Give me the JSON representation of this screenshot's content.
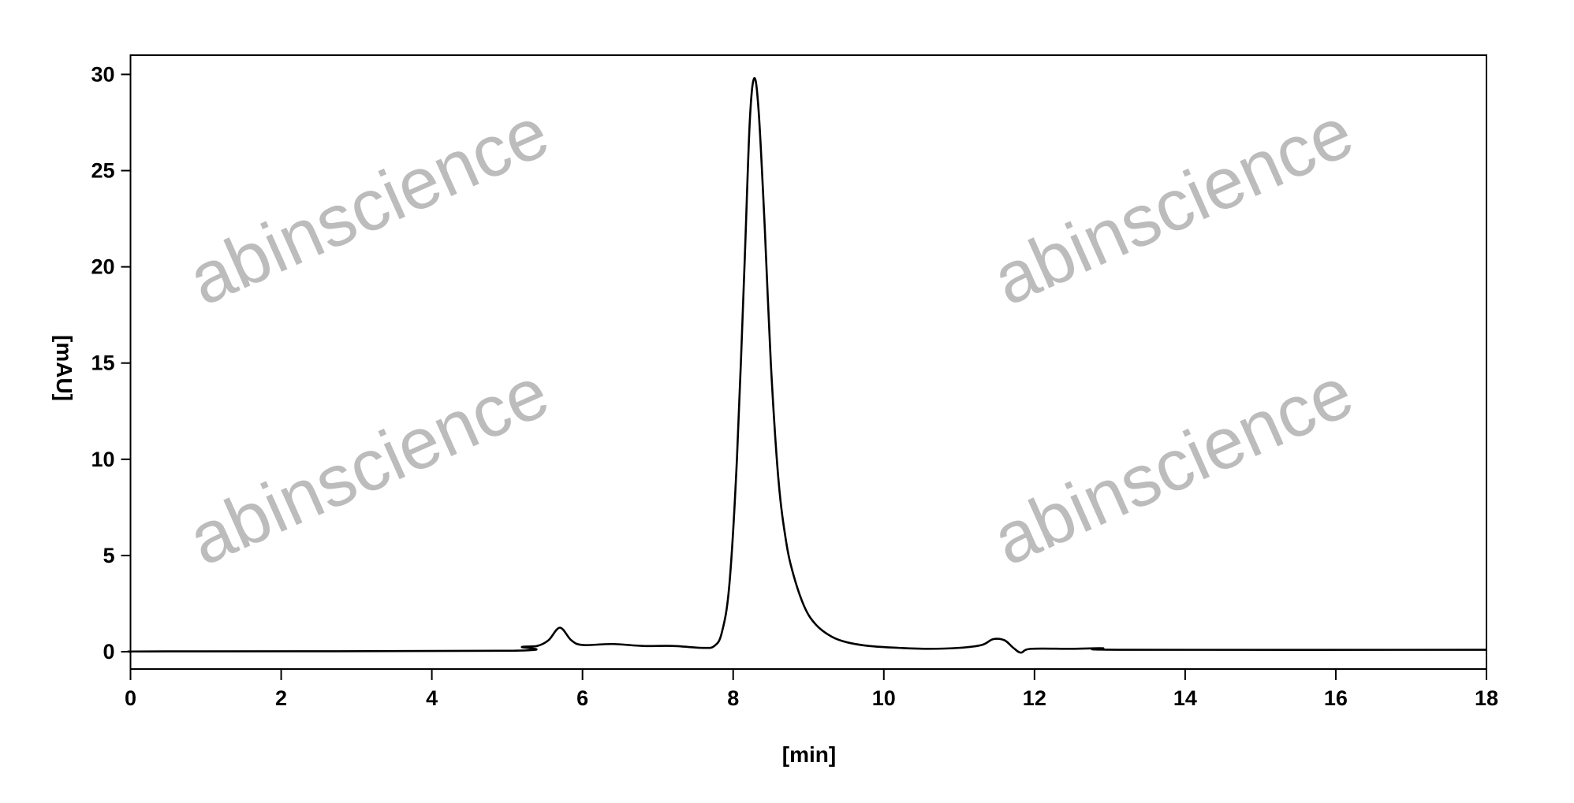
{
  "chart_data": {
    "type": "line",
    "title": "",
    "xlabel": "[min]",
    "ylabel": "[mAU]",
    "xlim": [
      0,
      18
    ],
    "ylim": [
      -0.9,
      31
    ],
    "xticks": [
      0,
      2,
      4,
      6,
      8,
      10,
      12,
      14,
      16,
      18
    ],
    "yticks": [
      0,
      5,
      10,
      15,
      20,
      25,
      30
    ],
    "grid": false,
    "legend": "none",
    "line_color": "#000000",
    "watermark": "abinscience",
    "watermark_color": "#bcbcbc",
    "series": [
      {
        "x": [
          0,
          0.5,
          5.0,
          5.2,
          5.4,
          5.55,
          5.7,
          5.85,
          6.0,
          6.4,
          6.8,
          7.2,
          7.6,
          7.75,
          7.85,
          7.95,
          8.05,
          8.15,
          8.22,
          8.28,
          8.34,
          8.42,
          8.5,
          8.6,
          8.7,
          8.8,
          8.95,
          9.1,
          9.3,
          9.5,
          9.8,
          10.2,
          10.6,
          11.0,
          11.3,
          11.45,
          11.6,
          11.72,
          11.82,
          11.95,
          12.5,
          12.9,
          13.2,
          18
        ],
        "y": [
          0,
          0.02,
          0.05,
          0.25,
          0.3,
          0.6,
          1.25,
          0.6,
          0.35,
          0.4,
          0.3,
          0.3,
          0.2,
          0.3,
          1.0,
          3.5,
          10,
          20,
          27.5,
          29.8,
          28,
          22,
          15,
          9,
          5.8,
          4,
          2.3,
          1.4,
          0.8,
          0.5,
          0.3,
          0.2,
          0.15,
          0.2,
          0.35,
          0.65,
          0.6,
          0.2,
          -0.05,
          0.15,
          0.15,
          0.18,
          0.1,
          0.1
        ]
      }
    ]
  }
}
